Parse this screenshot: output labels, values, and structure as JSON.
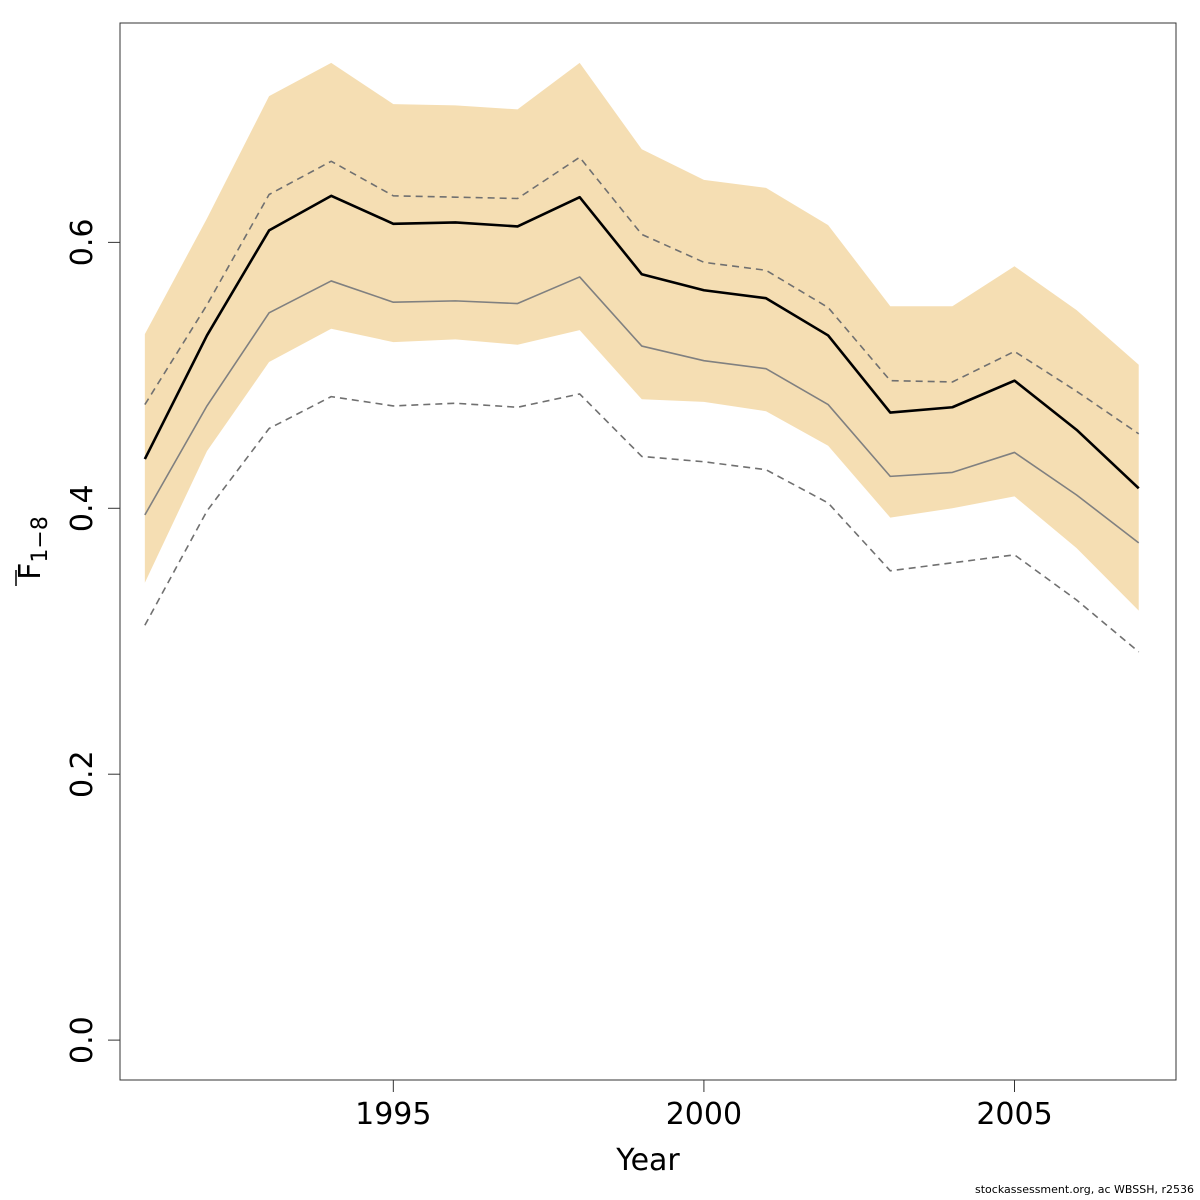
{
  "chart_data": {
    "type": "line",
    "xlabel": "Year",
    "ylabel_main": "F",
    "ylabel_sub": "1−8",
    "xlim": [
      1990.6,
      2007.6
    ],
    "ylim": [
      -0.03,
      0.765
    ],
    "xticks": [
      1995,
      2000,
      2005
    ],
    "yticks": [
      0.0,
      0.2,
      0.4,
      0.6
    ],
    "ytick_labels": [
      "0.0",
      "0.2",
      "0.4",
      "0.6"
    ],
    "grid": false,
    "x": [
      1991,
      1992,
      1993,
      1994,
      1995,
      1996,
      1997,
      1998,
      1999,
      2000,
      2001,
      2002,
      2003,
      2004,
      2005,
      2006,
      2007
    ],
    "band": {
      "color": "#F5DEB3",
      "upper": [
        0.531,
        0.618,
        0.71,
        0.735,
        0.704,
        0.703,
        0.7,
        0.735,
        0.67,
        0.647,
        0.641,
        0.613,
        0.552,
        0.552,
        0.582,
        0.549,
        0.508
      ],
      "lower": [
        0.344,
        0.443,
        0.51,
        0.535,
        0.525,
        0.527,
        0.523,
        0.534,
        0.482,
        0.48,
        0.473,
        0.447,
        0.393,
        0.4,
        0.409,
        0.37,
        0.323
      ]
    },
    "series": [
      {
        "style": "upper-dashed",
        "color": "#707070",
        "values": [
          0.478,
          0.553,
          0.636,
          0.661,
          0.635,
          0.634,
          0.633,
          0.664,
          0.606,
          0.585,
          0.579,
          0.551,
          0.496,
          0.495,
          0.518,
          0.488,
          0.456
        ]
      },
      {
        "style": "median",
        "color": "#000000",
        "values": [
          0.437,
          0.53,
          0.609,
          0.635,
          0.614,
          0.615,
          0.612,
          0.634,
          0.576,
          0.564,
          0.558,
          0.53,
          0.472,
          0.476,
          0.496,
          0.459,
          0.415
        ]
      },
      {
        "style": "solid-grey",
        "color": "#808080",
        "values": [
          0.395,
          0.477,
          0.547,
          0.571,
          0.555,
          0.556,
          0.554,
          0.574,
          0.522,
          0.511,
          0.505,
          0.478,
          0.424,
          0.427,
          0.442,
          0.41,
          0.374
        ]
      },
      {
        "style": "lower-dashed",
        "color": "#707070",
        "values": [
          0.312,
          0.398,
          0.46,
          0.484,
          0.477,
          0.479,
          0.476,
          0.486,
          0.439,
          0.435,
          0.429,
          0.404,
          0.353,
          0.359,
          0.365,
          0.331,
          0.292
        ]
      }
    ]
  },
  "footer": "stockassessment.org, ac  WBSSH, r2536"
}
